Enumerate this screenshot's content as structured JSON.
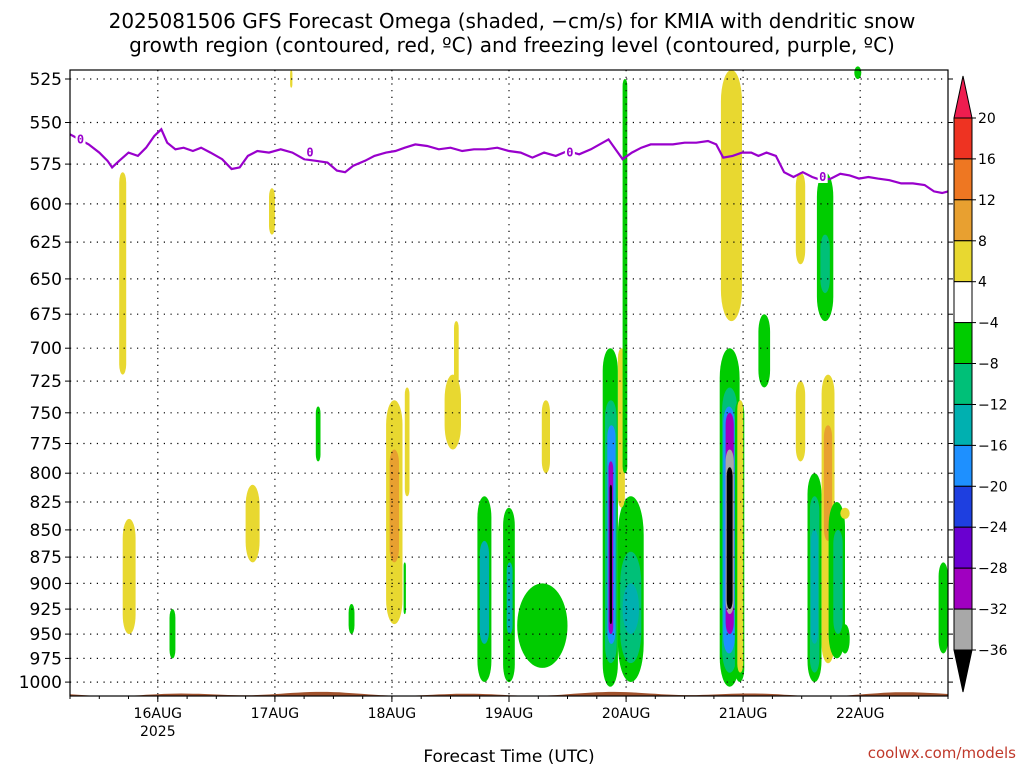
{
  "title_line1": "2025081506 GFS Forecast Omega (shaded, −cm/s) for KMIA with dendritic snow",
  "title_line2": "growth region (contoured, red, ºC) and freezing level (contoured, purple, ºC)",
  "credit": "coolwx.com/models",
  "chart_data": {
    "type": "heatmap",
    "title": "2025081506 GFS Forecast Omega (shaded, −cm/s) for KMIA with dendritic snow growth region (contoured, red, ºC) and freezing level (contoured, purple, ºC)",
    "xlabel": "Forecast Time (UTC)",
    "ylabel": "",
    "x_ticks": [
      {
        "t": 0.75,
        "label": "16AUG",
        "sub": "2025"
      },
      {
        "t": 1.75,
        "label": "17AUG",
        "sub": ""
      },
      {
        "t": 2.75,
        "label": "18AUG",
        "sub": ""
      },
      {
        "t": 3.75,
        "label": "19AUG",
        "sub": ""
      },
      {
        "t": 4.75,
        "label": "20AUG",
        "sub": ""
      },
      {
        "t": 5.75,
        "label": "21AUG",
        "sub": ""
      },
      {
        "t": 6.75,
        "label": "22AUG",
        "sub": ""
      }
    ],
    "xlim_days_from_15AUG06Z": [
      0,
      7.5
    ],
    "y_ticks": [
      525,
      550,
      575,
      600,
      625,
      650,
      675,
      700,
      725,
      750,
      775,
      800,
      825,
      850,
      875,
      900,
      925,
      950,
      975,
      1000
    ],
    "ylim_hpa": [
      1015,
      520
    ],
    "y_scale": "log-pressure",
    "grid": true,
    "colorbar": {
      "levels": [
        "20",
        "16",
        "12",
        "8",
        "4",
        "−4",
        "−8",
        "−12",
        "−16",
        "−20",
        "−24",
        "−28",
        "−32",
        "−36"
      ],
      "colors": [
        "#ee1d4f",
        "#ee3322",
        "#ee7722",
        "#e8a030",
        "#e8d830",
        "#ffffff",
        "#00cc00",
        "#00c078",
        "#00b0b0",
        "#1e90ff",
        "#1e3fe0",
        "#6a00d0",
        "#a000c0",
        "#a8a8a8",
        "#000000"
      ],
      "top_triangle_color": "#ee1d4f",
      "bottom_triangle_color": "#000000"
    },
    "freezing_level_label": "0",
    "freezing_level_color": "#9900cc",
    "ground_color": "#a0522d",
    "freezing_level": [
      [
        0.0,
        557
      ],
      [
        0.08,
        560
      ],
      [
        0.16,
        563
      ],
      [
        0.25,
        568
      ],
      [
        0.32,
        573
      ],
      [
        0.36,
        577
      ],
      [
        0.42,
        573
      ],
      [
        0.5,
        568
      ],
      [
        0.58,
        570
      ],
      [
        0.65,
        565
      ],
      [
        0.72,
        558
      ],
      [
        0.78,
        554
      ],
      [
        0.83,
        562
      ],
      [
        0.9,
        566
      ],
      [
        0.97,
        565
      ],
      [
        1.05,
        567
      ],
      [
        1.12,
        565
      ],
      [
        1.2,
        568
      ],
      [
        1.3,
        572
      ],
      [
        1.38,
        578
      ],
      [
        1.45,
        577
      ],
      [
        1.52,
        570
      ],
      [
        1.6,
        567
      ],
      [
        1.7,
        568
      ],
      [
        1.8,
        566
      ],
      [
        1.9,
        568
      ],
      [
        2.0,
        572
      ],
      [
        2.1,
        573
      ],
      [
        2.2,
        574
      ],
      [
        2.28,
        579
      ],
      [
        2.35,
        580
      ],
      [
        2.42,
        576
      ],
      [
        2.52,
        573
      ],
      [
        2.6,
        570
      ],
      [
        2.7,
        568
      ],
      [
        2.78,
        567
      ],
      [
        2.86,
        565
      ],
      [
        2.95,
        563
      ],
      [
        3.05,
        564
      ],
      [
        3.15,
        566
      ],
      [
        3.25,
        565
      ],
      [
        3.35,
        567
      ],
      [
        3.45,
        566
      ],
      [
        3.55,
        566
      ],
      [
        3.65,
        565
      ],
      [
        3.75,
        567
      ],
      [
        3.85,
        568
      ],
      [
        3.95,
        571
      ],
      [
        4.05,
        568
      ],
      [
        4.15,
        570
      ],
      [
        4.25,
        567
      ],
      [
        4.35,
        569
      ],
      [
        4.45,
        566
      ],
      [
        4.55,
        562
      ],
      [
        4.6,
        560
      ],
      [
        4.66,
        566
      ],
      [
        4.72,
        572
      ],
      [
        4.8,
        568
      ],
      [
        4.88,
        565
      ],
      [
        4.96,
        563
      ],
      [
        5.05,
        563
      ],
      [
        5.15,
        563
      ],
      [
        5.25,
        562
      ],
      [
        5.35,
        562
      ],
      [
        5.45,
        561
      ],
      [
        5.52,
        563
      ],
      [
        5.58,
        571
      ],
      [
        5.66,
        570
      ],
      [
        5.74,
        568
      ],
      [
        5.82,
        568
      ],
      [
        5.88,
        570
      ],
      [
        5.95,
        568
      ],
      [
        6.03,
        570
      ],
      [
        6.1,
        580
      ],
      [
        6.18,
        583
      ],
      [
        6.26,
        580
      ],
      [
        6.34,
        583
      ],
      [
        6.42,
        585
      ],
      [
        6.5,
        584
      ],
      [
        6.58,
        581
      ],
      [
        6.66,
        582
      ],
      [
        6.74,
        584
      ],
      [
        6.82,
        583
      ],
      [
        6.9,
        584
      ],
      [
        7.0,
        585
      ],
      [
        7.1,
        587
      ],
      [
        7.2,
        587
      ],
      [
        7.3,
        588
      ],
      [
        7.38,
        592
      ],
      [
        7.45,
        593
      ],
      [
        7.5,
        592
      ]
    ],
    "freezing_level_label_positions": [
      [
        0.09,
        560
      ],
      [
        2.05,
        568
      ],
      [
        4.27,
        568
      ],
      [
        6.43,
        583
      ]
    ],
    "omega_features": [
      {
        "t": [
          0.42,
          0.48
        ],
        "p": [
          580,
          720
        ],
        "v": 5
      },
      {
        "t": [
          0.45,
          0.56
        ],
        "p": [
          840,
          950
        ],
        "v": 5
      },
      {
        "t": [
          0.85,
          0.9
        ],
        "p": [
          925,
          975
        ],
        "v": -5
      },
      {
        "t": [
          1.5,
          1.62
        ],
        "p": [
          810,
          880
        ],
        "v": 5
      },
      {
        "t": [
          1.7,
          1.75
        ],
        "p": [
          590,
          620
        ],
        "v": 4
      },
      {
        "t": [
          1.88,
          1.9
        ],
        "p": [
          520,
          530
        ],
        "v": 4
      },
      {
        "t": [
          2.1,
          2.14
        ],
        "p": [
          745,
          790
        ],
        "v": -5
      },
      {
        "t": [
          2.38,
          2.43
        ],
        "p": [
          920,
          950
        ],
        "v": -5
      },
      {
        "t": [
          2.7,
          2.84
        ],
        "p": [
          740,
          940
        ],
        "v": 5
      },
      {
        "t": [
          2.73,
          2.81
        ],
        "p": [
          780,
          880
        ],
        "v": 11
      },
      {
        "t": [
          2.86,
          2.9
        ],
        "p": [
          730,
          820
        ],
        "v": 4
      },
      {
        "t": [
          2.85,
          2.87
        ],
        "p": [
          880,
          930
        ],
        "v": -5
      },
      {
        "t": [
          3.2,
          3.34
        ],
        "p": [
          720,
          780
        ],
        "v": 5
      },
      {
        "t": [
          3.28,
          3.32
        ],
        "p": [
          680,
          750
        ],
        "v": 4
      },
      {
        "t": [
          3.48,
          3.6
        ],
        "p": [
          820,
          1000
        ],
        "v": -6
      },
      {
        "t": [
          3.5,
          3.58
        ],
        "p": [
          860,
          960
        ],
        "v": -14
      },
      {
        "t": [
          3.7,
          3.8
        ],
        "p": [
          830,
          1000
        ],
        "v": -6
      },
      {
        "t": [
          3.73,
          3.78
        ],
        "p": [
          880,
          950
        ],
        "v": -14
      },
      {
        "t": [
          3.82,
          4.25
        ],
        "p": [
          900,
          985
        ],
        "v": -6
      },
      {
        "t": [
          4.03,
          4.1
        ],
        "p": [
          740,
          800
        ],
        "v": 4
      },
      {
        "t": [
          4.55,
          4.68
        ],
        "p": [
          700,
          1005
        ],
        "v": -6
      },
      {
        "t": [
          4.57,
          4.67
        ],
        "p": [
          740,
          980
        ],
        "v": -12
      },
      {
        "t": [
          4.59,
          4.66
        ],
        "p": [
          760,
          960
        ],
        "v": -17
      },
      {
        "t": [
          4.6,
          4.64
        ],
        "p": [
          790,
          950
        ],
        "v": -30
      },
      {
        "t": [
          4.61,
          4.63
        ],
        "p": [
          810,
          940
        ],
        "v": -38
      },
      {
        "t": [
          4.68,
          4.9
        ],
        "p": [
          820,
          1000
        ],
        "v": -6
      },
      {
        "t": [
          4.7,
          4.88
        ],
        "p": [
          870,
          980
        ],
        "v": -12
      },
      {
        "t": [
          4.72,
          4.86
        ],
        "p": [
          900,
          950
        ],
        "v": -16
      },
      {
        "t": [
          4.68,
          4.74
        ],
        "p": [
          700,
          830
        ],
        "v": 4
      },
      {
        "t": [
          4.72,
          4.76
        ],
        "p": [
          525,
          800
        ],
        "v": -6
      },
      {
        "t": [
          5.55,
          5.72
        ],
        "p": [
          700,
          1005
        ],
        "v": -6
      },
      {
        "t": [
          5.57,
          5.7
        ],
        "p": [
          730,
          990
        ],
        "v": -12
      },
      {
        "t": [
          5.58,
          5.68
        ],
        "p": [
          745,
          970
        ],
        "v": -17
      },
      {
        "t": [
          5.6,
          5.67
        ],
        "p": [
          750,
          950
        ],
        "v": -30
      },
      {
        "t": [
          5.6,
          5.67
        ],
        "p": [
          780,
          930
        ],
        "v": -34
      },
      {
        "t": [
          5.61,
          5.66
        ],
        "p": [
          795,
          925
        ],
        "v": -38
      },
      {
        "t": [
          5.56,
          5.74
        ],
        "p": [
          520,
          680
        ],
        "v": 5
      },
      {
        "t": [
          5.68,
          5.76
        ],
        "p": [
          740,
          1000
        ],
        "v": -6
      },
      {
        "t": [
          5.7,
          5.75
        ],
        "p": [
          740,
          990
        ],
        "v": 4
      },
      {
        "t": [
          5.88,
          5.98
        ],
        "p": [
          675,
          730
        ],
        "v": -6
      },
      {
        "t": [
          6.2,
          6.28
        ],
        "p": [
          580,
          640
        ],
        "v": 4
      },
      {
        "t": [
          6.2,
          6.28
        ],
        "p": [
          725,
          790
        ],
        "v": 4
      },
      {
        "t": [
          6.38,
          6.52
        ],
        "p": [
          580,
          680
        ],
        "v": -6
      },
      {
        "t": [
          6.41,
          6.49
        ],
        "p": [
          620,
          660
        ],
        "v": -10
      },
      {
        "t": [
          6.3,
          6.42
        ],
        "p": [
          800,
          1000
        ],
        "v": -6
      },
      {
        "t": [
          6.32,
          6.4
        ],
        "p": [
          820,
          990
        ],
        "v": -12
      },
      {
        "t": [
          6.33,
          6.39
        ],
        "p": [
          850,
          960
        ],
        "v": -16
      },
      {
        "t": [
          6.42,
          6.53
        ],
        "p": [
          720,
          980
        ],
        "v": 5
      },
      {
        "t": [
          6.44,
          6.51
        ],
        "p": [
          760,
          860
        ],
        "v": 10
      },
      {
        "t": [
          6.48,
          6.62
        ],
        "p": [
          825,
          975
        ],
        "v": -6
      },
      {
        "t": [
          6.52,
          6.6
        ],
        "p": [
          850,
          950
        ],
        "v": -12
      },
      {
        "t": [
          6.58,
          6.66
        ],
        "p": [
          940,
          970
        ],
        "v": -6
      },
      {
        "t": [
          6.58,
          6.66
        ],
        "p": [
          830,
          840
        ],
        "v": 4
      },
      {
        "t": [
          6.7,
          6.76
        ],
        "p": [
          518,
          525
        ],
        "v": -6
      },
      {
        "t": [
          7.42,
          7.5
        ],
        "p": [
          880,
          970
        ],
        "v": -6
      }
    ]
  }
}
